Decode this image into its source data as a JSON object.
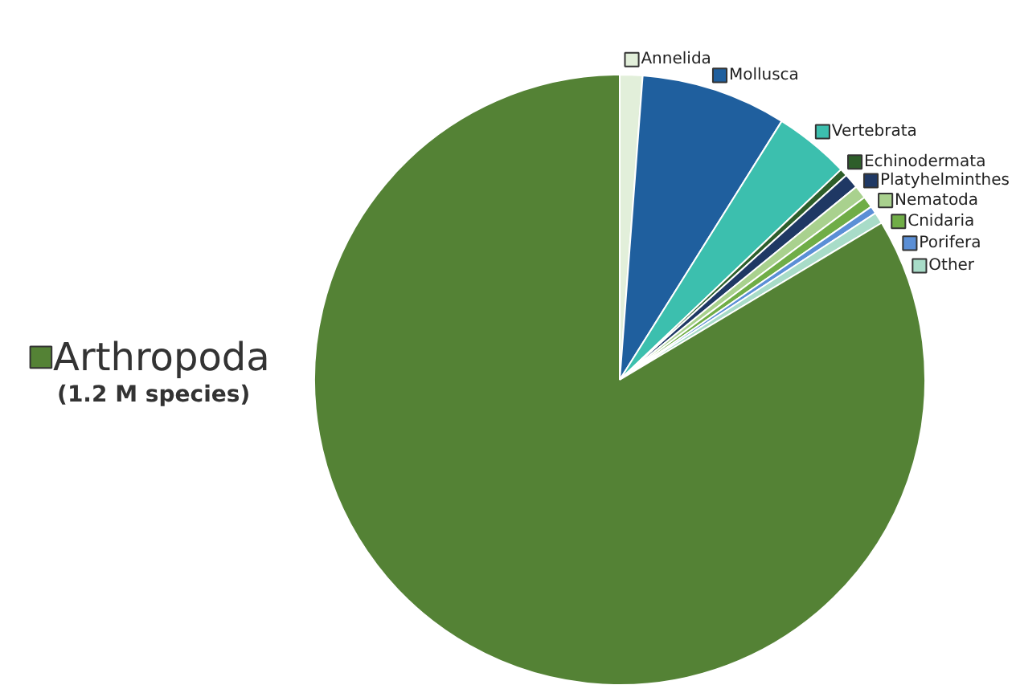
{
  "chart_data": {
    "type": "pie",
    "categories": [
      "Annelida",
      "Mollusca",
      "Vertebrata",
      "Echinodermata",
      "Platyhelminthes",
      "Nematoda",
      "Cnidaria",
      "Porifera",
      "Other",
      "Arthropoda"
    ],
    "values": [
      1.2,
      7.7,
      4.0,
      0.4,
      0.8,
      0.7,
      0.6,
      0.4,
      0.6,
      83.6
    ],
    "colors": [
      "#e2efda",
      "#1f5f9e",
      "#3cbfae",
      "#2e5e2a",
      "#1f3864",
      "#a9d18e",
      "#70ad47",
      "#5b8fd6",
      "#a8dcc8",
      "#548235"
    ],
    "legend": "top",
    "annotations": [
      "(1.2 M species)"
    ]
  }
}
